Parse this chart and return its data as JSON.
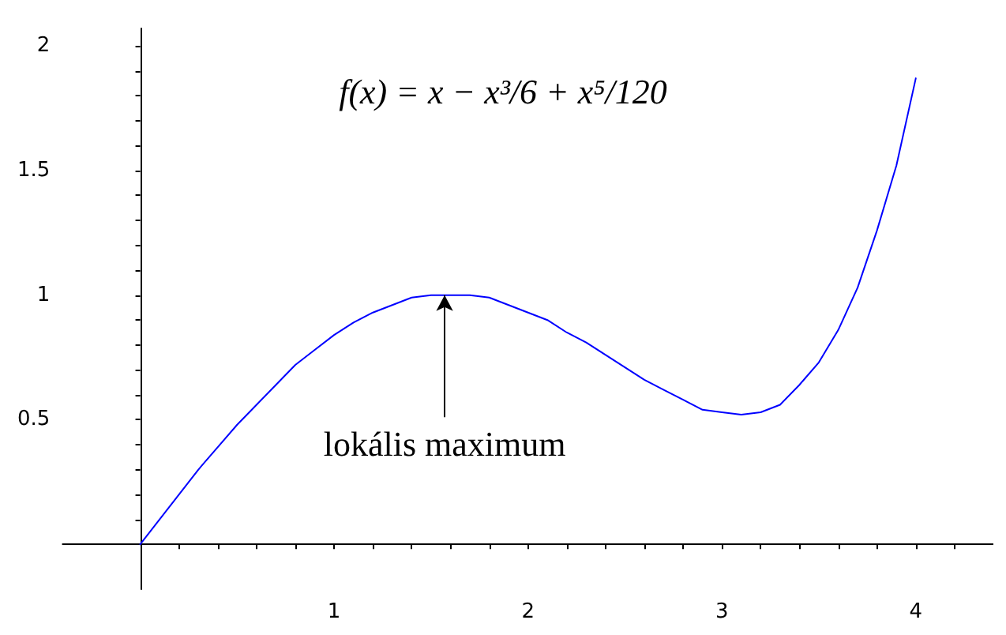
{
  "chart_data": {
    "type": "line",
    "title": "f(x) = x − x³/6 + x⁵/120",
    "x": [
      0,
      0.1,
      0.2,
      0.3,
      0.4,
      0.5,
      0.6,
      0.7,
      0.8,
      0.9,
      1.0,
      1.1,
      1.2,
      1.3,
      1.4,
      1.5,
      1.6,
      1.7,
      1.8,
      1.9,
      2.0,
      2.1,
      2.2,
      2.3,
      2.4,
      2.5,
      2.6,
      2.7,
      2.8,
      2.9,
      3.0,
      3.1,
      3.2,
      3.3,
      3.4,
      3.5,
      3.6,
      3.7,
      3.8,
      3.9,
      4.0
    ],
    "series": [
      {
        "color": "#0000ff",
        "values": [
          0,
          0.1,
          0.2,
          0.3,
          0.39,
          0.48,
          0.56,
          0.64,
          0.72,
          0.78,
          0.84,
          0.89,
          0.93,
          0.96,
          0.99,
          1.0,
          1.0,
          1.0,
          0.99,
          0.96,
          0.93,
          0.9,
          0.85,
          0.81,
          0.76,
          0.71,
          0.66,
          0.62,
          0.58,
          0.54,
          0.53,
          0.52,
          0.53,
          0.56,
          0.64,
          0.73,
          0.86,
          1.03,
          1.26,
          1.52,
          1.87
        ]
      }
    ],
    "xlim": [
      -0.4,
      4.4
    ],
    "ylim": [
      -0.18,
      2.07
    ],
    "xticks": [
      1,
      2,
      3,
      4
    ],
    "yticks": [
      0.5,
      1,
      1.5,
      2
    ],
    "annotations": [
      {
        "text": "lokális maximum",
        "x": 1.57,
        "y": 1
      }
    ],
    "grid": false,
    "marker": "none",
    "line_style": "solid"
  }
}
